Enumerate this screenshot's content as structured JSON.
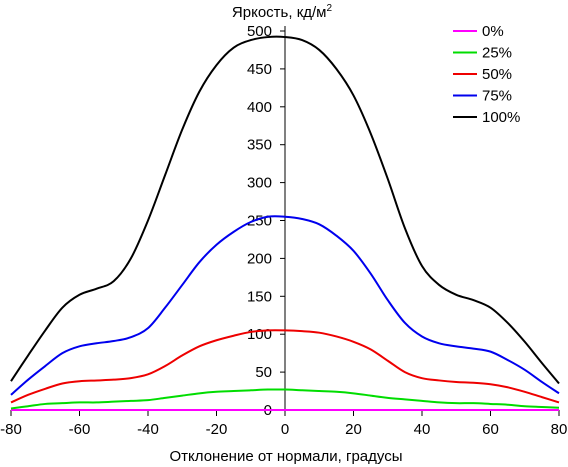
{
  "chart_data": {
    "type": "line",
    "ylabel": "Яркость, кд/м",
    "ylabel_superscript": "2",
    "xlabel": "Отклонение от нормали, градусы",
    "xlim": [
      -80,
      80
    ],
    "ylim": [
      0,
      500
    ],
    "x_ticks": [
      "-80",
      "-60",
      "-40",
      "-20",
      "0",
      "20",
      "40",
      "60",
      "80"
    ],
    "y_ticks": [
      "0",
      "50",
      "100",
      "150",
      "200",
      "250",
      "300",
      "350",
      "400",
      "450",
      "500"
    ],
    "grid": false,
    "legend_position": "top-right",
    "x": [
      -80,
      -75,
      -70,
      -65,
      -60,
      -55,
      -50,
      -45,
      -40,
      -35,
      -30,
      -25,
      -20,
      -15,
      -10,
      -5,
      0,
      5,
      10,
      15,
      20,
      25,
      30,
      35,
      40,
      45,
      50,
      55,
      60,
      65,
      70,
      75,
      80
    ],
    "series": [
      {
        "name": "0%",
        "color": "#ff00ff",
        "values": [
          0,
          0,
          0,
          0,
          0,
          0,
          0,
          0,
          0,
          0,
          0,
          0,
          0,
          0,
          0,
          0,
          0,
          0,
          0,
          0,
          0,
          0,
          0,
          0,
          0,
          0,
          0,
          0,
          0,
          0,
          0,
          0,
          0
        ]
      },
      {
        "name": "25%",
        "color": "#00dd00",
        "values": [
          2,
          5,
          8,
          9,
          10,
          10,
          11,
          12,
          13,
          16,
          19,
          22,
          24,
          25,
          26,
          27,
          27,
          26,
          25,
          24,
          22,
          19,
          16,
          14,
          12,
          10,
          9,
          9,
          8,
          7,
          5,
          4,
          3
        ]
      },
      {
        "name": "50%",
        "color": "#ee0000",
        "values": [
          10,
          20,
          28,
          35,
          38,
          39,
          40,
          42,
          47,
          58,
          72,
          84,
          92,
          98,
          103,
          105,
          105,
          104,
          102,
          97,
          90,
          80,
          65,
          50,
          42,
          39,
          37,
          36,
          34,
          30,
          24,
          17,
          10
        ]
      },
      {
        "name": "75%",
        "color": "#0000ee",
        "values": [
          20,
          40,
          58,
          75,
          84,
          88,
          91,
          96,
          108,
          135,
          165,
          195,
          218,
          235,
          248,
          255,
          255,
          252,
          245,
          230,
          210,
          180,
          145,
          115,
          97,
          88,
          84,
          81,
          77,
          66,
          53,
          37,
          22
        ]
      },
      {
        "name": "100%",
        "color": "#000000",
        "values": [
          38,
          72,
          105,
          135,
          152,
          160,
          170,
          200,
          250,
          310,
          370,
          420,
          455,
          478,
          488,
          492,
          492,
          488,
          475,
          450,
          415,
          365,
          305,
          240,
          190,
          165,
          152,
          145,
          135,
          115,
          90,
          62,
          35
        ]
      }
    ]
  }
}
